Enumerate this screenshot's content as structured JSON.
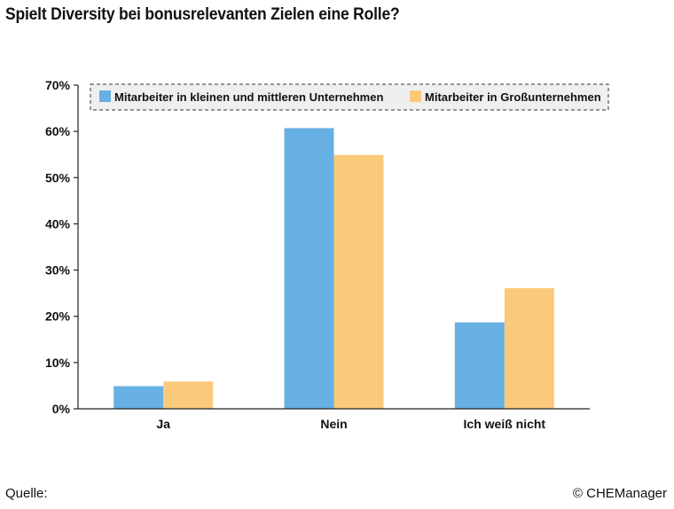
{
  "chart_data": {
    "type": "bar",
    "title": "Spielt Diversity bei bonusrelevanten Zielen eine Rolle?",
    "categories": [
      "Ja",
      "Nein",
      "Ich weiß nicht"
    ],
    "series": [
      {
        "name": "Mitarbeiter in kleinen und mittleren Unternehmen",
        "values": [
          4.9,
          60.7,
          18.7
        ],
        "color": "#67b0e3"
      },
      {
        "name": "Mitarbeiter in Großunternehmen",
        "values": [
          5.9,
          54.9,
          26.1
        ],
        "color": "#fbc97b"
      }
    ],
    "ylim": [
      0,
      70
    ],
    "yticks": [
      0,
      10,
      20,
      30,
      40,
      50,
      60,
      70
    ],
    "yunit": "%",
    "grid": false,
    "legend": "top (dashed box)"
  },
  "footer": {
    "source_label": "Quelle:",
    "copyright": "© CHEManager"
  }
}
